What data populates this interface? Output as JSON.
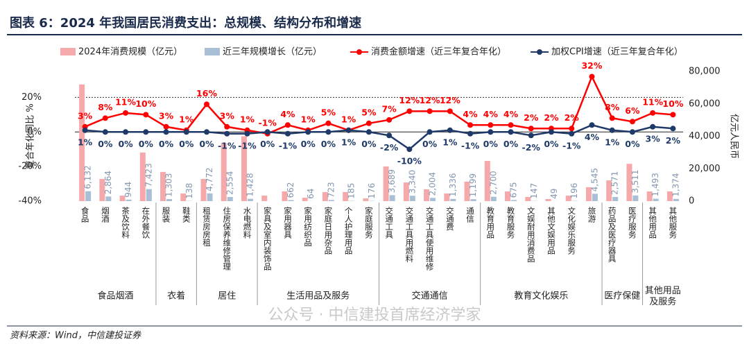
{
  "chart_data": {
    "type": "bar",
    "title": "图表 6：2024 年我国居民消费支出：总规模、结构分布和增速",
    "source": "资料来源：Wind，中信建投证券",
    "watermark": "公众号 · 中信建投首席经济学家",
    "y_label": "复合年化同比 %",
    "y2_label": "亿元人民币",
    "categories": [
      "食品",
      "烟酒",
      "茶及饮料",
      "在外餐饮",
      "服装",
      "鞋类",
      "租赁房房租",
      "住房保养维修管理",
      "水电燃料",
      "家具及室内装饰品",
      "家用器具",
      "家用纺织品",
      "家庭日用杂品",
      "个人护理用品",
      "家庭服务",
      "交通工具",
      "交通工具用燃料",
      "交通工具使用维修",
      "交通费",
      "通信",
      "教育用品",
      "教育服务",
      "文娱耐用消费品",
      "其他文娱用品",
      "文化娱乐服务",
      "旅游",
      "药品及医疗器具",
      "医疗服务",
      "其他用品",
      "其他服务"
    ],
    "groups": [
      {
        "label": "食品烟酒",
        "count": 4
      },
      {
        "label": "衣着",
        "count": 2
      },
      {
        "label": "居住",
        "count": 3
      },
      {
        "label": "生活用品及服务",
        "count": 6
      },
      {
        "label": "交通通信",
        "count": 5
      },
      {
        "label": "教育文化娱乐",
        "count": 6
      },
      {
        "label": "医疗保健",
        "count": 2
      },
      {
        "label": "其他用品及服务",
        "count": 2
      }
    ],
    "series": [
      {
        "name": "2024年消费规模（亿元）",
        "type": "bar",
        "axis": "y2",
        "color": "#f6a9ab",
        "values": [
          72000,
          13700,
          3400,
          30000,
          18000,
          4700,
          13700,
          36000,
          40000,
          3400,
          6000,
          2100,
          5600,
          5600,
          1700,
          21400,
          11500,
          7300,
          4700,
          12000,
          24800,
          6000,
          2600,
          1300,
          3400,
          8600,
          12800,
          23000,
          6000,
          6000
        ]
      },
      {
        "name": "近三年规模增长（亿元）",
        "type": "bar",
        "axis": "y2",
        "color": "#a9bfd6",
        "values": [
          6132,
          2864,
          944,
          7423,
          1303,
          138,
          4772,
          2554,
          1428,
          null,
          662,
          64,
          723,
          185,
          176,
          3689,
          3340,
          2004,
          1336,
          1199,
          2700,
          675,
          147,
          49,
          196,
          4545,
          2571,
          3511,
          1493,
          1374
        ],
        "value_labels": [
          "6,132",
          "2,864",
          "944",
          "7,423",
          "1,303",
          "138",
          "4,772",
          "2,554",
          "1,428",
          null,
          "662",
          "64",
          "723",
          "185",
          "176",
          "3,689",
          "3,340",
          "2,004",
          "1,336",
          "1,199",
          "2,700",
          "675",
          "147",
          "49",
          "196",
          "4,545",
          "2,571",
          "3,511",
          "1,493",
          "1,374"
        ]
      },
      {
        "name": "消费金额增速（近三年复合年化）",
        "type": "line",
        "color": "#ff0000",
        "values": [
          3,
          8,
          11,
          10,
          3,
          1,
          16,
          3,
          1,
          -1,
          4,
          1,
          5,
          1,
          5,
          7,
          12,
          12,
          12,
          4,
          4,
          4,
          2,
          2,
          2,
          32,
          8,
          6,
          11,
          10
        ],
        "value_labels": [
          "3%",
          "8%",
          "11%",
          "10%",
          "3%",
          "1%",
          "16%",
          "3%",
          "1%",
          "-1%",
          "4%",
          "1%",
          "5%",
          "1%",
          "5%",
          "7%",
          "12%",
          "12%",
          "12%",
          "4%",
          "4%",
          "4%",
          "2%",
          "2%",
          "2%",
          "32%",
          "8%",
          "6%",
          "11%",
          "10%"
        ]
      },
      {
        "name": "加权CPI增速（近三年复合年化）",
        "type": "line",
        "color": "#1f3a68",
        "values": [
          1,
          0,
          0,
          0,
          0,
          0,
          0,
          -1,
          -1,
          0,
          -1,
          0,
          0,
          1,
          0,
          -2,
          -10,
          0,
          1,
          -1,
          0,
          0,
          -2,
          0,
          -1,
          4,
          1,
          0,
          3,
          2
        ],
        "value_labels": [
          "1%",
          "0%",
          "0%",
          "0%",
          "0%",
          "0%",
          "0%",
          "-1%",
          "-1%",
          "0%",
          "-1%",
          "0%",
          "0%",
          "1%",
          "0%",
          "-2%",
          "-10%",
          "0%",
          "1%",
          "-1%",
          "0%",
          "0%",
          "-2%",
          "0%",
          "-1%",
          "4%",
          "1%",
          "0%",
          "3%",
          "2%"
        ]
      }
    ],
    "ylim": [
      -40,
      35
    ],
    "yticks": [
      {
        "value": 20,
        "label": "20%"
      },
      {
        "value": 0,
        "label": "0%"
      },
      {
        "value": -20,
        "label": "-20%"
      },
      {
        "value": -40,
        "label": "-40%"
      }
    ],
    "y2lim": [
      0,
      80000
    ],
    "y2ticks": [
      {
        "value": 80000,
        "label": "80,000"
      },
      {
        "value": 60000,
        "label": "60,000"
      },
      {
        "value": 40000,
        "label": "40,000"
      },
      {
        "value": 20000,
        "label": "20,000"
      },
      0
    ]
  }
}
